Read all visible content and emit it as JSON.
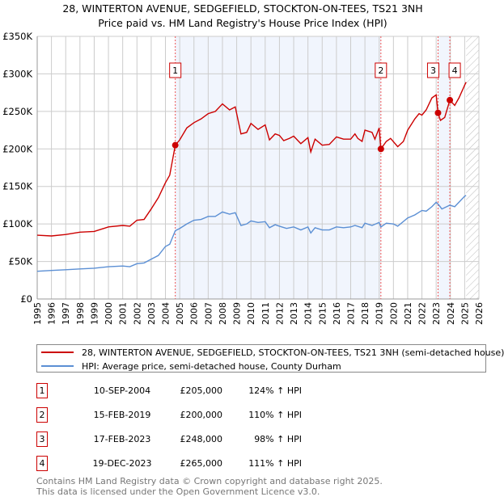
{
  "chart_data": {
    "type": "line",
    "title": "28, WINTERTON AVENUE, SEDGEFIELD, STOCKTON-ON-TEES, TS21 3NH",
    "subtitle": "Price paid vs. HM Land Registry's House Price Index (HPI)",
    "xlim": [
      1995,
      2026
    ],
    "ylim": [
      0,
      350000
    ],
    "x_ticks": [
      "1995",
      "1996",
      "1997",
      "1998",
      "1999",
      "2000",
      "2001",
      "2002",
      "2003",
      "2004",
      "2005",
      "2006",
      "2007",
      "2008",
      "2009",
      "2010",
      "2011",
      "2012",
      "2013",
      "2014",
      "2015",
      "2016",
      "2017",
      "2018",
      "2019",
      "2020",
      "2021",
      "2022",
      "2023",
      "2024",
      "2025",
      "2026"
    ],
    "y_ticks": [
      {
        "v": 0,
        "label": "£0"
      },
      {
        "v": 50000,
        "label": "£50K"
      },
      {
        "v": 100000,
        "label": "£100K"
      },
      {
        "v": 150000,
        "label": "£150K"
      },
      {
        "v": 200000,
        "label": "£200K"
      },
      {
        "v": 250000,
        "label": "£250K"
      },
      {
        "v": 300000,
        "label": "£300K"
      },
      {
        "v": 350000,
        "label": "£350K"
      }
    ],
    "grid": true,
    "shaded_periods": [
      [
        2004.69,
        2019.12
      ],
      [
        2023.13,
        2023.96
      ]
    ],
    "hatched_from": 2025.1,
    "series": [
      {
        "name": "28, WINTERTON AVENUE, SEDGEFIELD, STOCKTON-ON-TEES, TS21 3NH (semi-detached house)",
        "color": "#cc0000",
        "x": [
          1995,
          1996,
          1997,
          1998,
          1999,
          2000,
          2001,
          2001.5,
          2002,
          2002.5,
          2003,
          2003.5,
          2004,
          2004.3,
          2004.69,
          2005,
          2005.5,
          2006,
          2006.5,
          2007,
          2007.5,
          2008,
          2008.5,
          2008.9,
          2009.3,
          2009.7,
          2010,
          2010.5,
          2011,
          2011.3,
          2011.7,
          2012,
          2012.3,
          2012.7,
          2013,
          2013.5,
          2014,
          2014.2,
          2014.5,
          2015,
          2015.5,
          2016,
          2016.5,
          2017,
          2017.3,
          2017.5,
          2017.8,
          2018,
          2018.5,
          2018.7,
          2019,
          2019.12,
          2019.5,
          2019.8,
          2020.3,
          2020.7,
          2021,
          2021.5,
          2021.8,
          2022,
          2022.3,
          2022.7,
          2023,
          2023.13,
          2023.3,
          2023.6,
          2023.96,
          2024.3,
          2024.6,
          2025,
          2025.1
        ],
        "y": [
          85,
          84,
          86,
          89,
          90,
          96,
          98,
          97,
          105,
          106,
          120,
          135,
          155,
          165,
          205,
          212,
          228,
          235,
          240,
          247,
          250,
          260,
          252,
          256,
          220,
          222,
          234,
          226,
          232,
          212,
          220,
          218,
          211,
          214,
          217,
          207,
          215,
          196,
          213,
          205,
          206,
          216,
          213,
          213,
          220,
          214,
          210,
          225,
          222,
          213,
          228,
          200,
          210,
          214,
          203,
          210,
          225,
          240,
          247,
          245,
          252,
          268,
          272,
          248,
          238,
          242,
          265,
          258,
          268,
          285,
          289
        ]
      },
      {
        "name": "HPI: Average price, semi-detached house, County Durham",
        "color": "#5b8fd4",
        "x": [
          1995,
          1996,
          1997,
          1998,
          1999,
          2000,
          2001,
          2001.5,
          2002,
          2002.5,
          2003,
          2003.5,
          2004,
          2004.3,
          2004.69,
          2005,
          2005.5,
          2006,
          2006.5,
          2007,
          2007.5,
          2008,
          2008.5,
          2008.9,
          2009.3,
          2009.7,
          2010,
          2010.5,
          2011,
          2011.3,
          2011.7,
          2012,
          2012.5,
          2013,
          2013.5,
          2014,
          2014.2,
          2014.5,
          2015,
          2015.5,
          2016,
          2016.5,
          2017,
          2017.3,
          2017.8,
          2018,
          2018.5,
          2019,
          2019.12,
          2019.5,
          2020,
          2020.3,
          2021,
          2021.5,
          2022,
          2022.3,
          2022.7,
          2023,
          2023.2,
          2023.4,
          2023.96,
          2024.3,
          2024.6,
          2025,
          2025.1
        ],
        "y": [
          37,
          38,
          39,
          40,
          41,
          43,
          44,
          43,
          47,
          48,
          53,
          58,
          70,
          73,
          91,
          94,
          100,
          105,
          106,
          110,
          110,
          116,
          113,
          115,
          98,
          100,
          104,
          102,
          103,
          95,
          99,
          97,
          94,
          96,
          92,
          96,
          88,
          95,
          92,
          92,
          96,
          95,
          96,
          98,
          95,
          101,
          98,
          102,
          96,
          101,
          100,
          97,
          108,
          112,
          118,
          117,
          123,
          129,
          125,
          120,
          125,
          123,
          129,
          137,
          138
        ]
      }
    ],
    "y_units": "thousands GBP",
    "sales": [
      {
        "n": "1",
        "x": 2004.69,
        "value": 205000,
        "date": "10-SEP-2004",
        "price": "£205,000",
        "pct": "124% ↑ HPI"
      },
      {
        "n": "2",
        "x": 2019.12,
        "value": 200000,
        "date": "15-FEB-2019",
        "price": "£200,000",
        "pct": "110% ↑ HPI"
      },
      {
        "n": "3",
        "x": 2023.13,
        "value": 248000,
        "date": "17-FEB-2023",
        "price": "£248,000",
        "pct": "98% ↑ HPI"
      },
      {
        "n": "4",
        "x": 2023.96,
        "value": 265000,
        "date": "19-DEC-2023",
        "price": "£265,000",
        "pct": "111% ↑ HPI"
      }
    ]
  },
  "footer": {
    "line1": "Contains HM Land Registry data © Crown copyright and database right 2025.",
    "line2": "This data is licensed under the Open Government Licence v3.0."
  }
}
